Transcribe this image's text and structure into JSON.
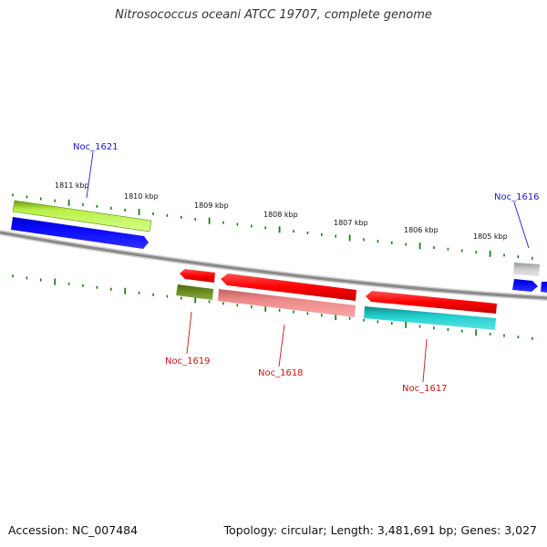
{
  "title": "Nitrosococcus oceani ATCC 19707, complete genome",
  "footer": {
    "accession": "Accession: NC_007484",
    "summary": "Topology: circular; Length: 3,481,691 bp; Genes: 3,027"
  },
  "kbp_labels": [
    "1811 kbp",
    "1810 kbp",
    "1809 kbp",
    "1808 kbp",
    "1807 kbp",
    "1806 kbp",
    "1805 kbp"
  ],
  "genes": {
    "Noc_1621": "Noc_1621",
    "Noc_1616": "Noc_1616",
    "Noc_1619": "Noc_1619",
    "Noc_1618": "Noc_1618",
    "Noc_1617": "Noc_1617"
  },
  "colors": {
    "forward_label": "#1a1ad6",
    "reverse_label": "#cc1111",
    "backbone": "#8a8a8a",
    "tick": "#1e7a1e"
  }
}
